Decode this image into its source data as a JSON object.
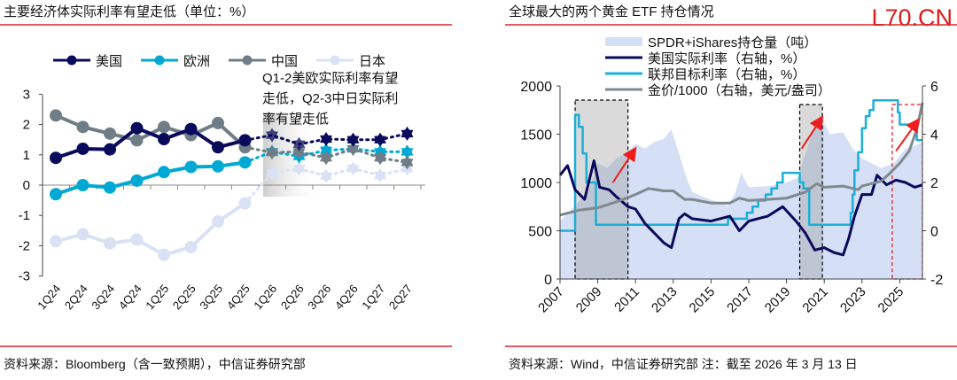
{
  "watermark": "L70.CN",
  "colors": {
    "us": "#0a0a5c",
    "eu": "#00a9d4",
    "cn": "#6f7e86",
    "jp": "#d9e2f5",
    "rule": "#d9282f",
    "etf": "#d5dff5",
    "fed": "#1ab0d8",
    "gold": "#7f8a8e",
    "arrow": "#ee1c1c"
  },
  "chart_data": [
    {
      "type": "line",
      "title": "主要经济体实际利率有望走低（单位：%）",
      "categories": [
        "1Q24",
        "2Q24",
        "3Q24",
        "4Q24",
        "1Q25",
        "2Q25",
        "3Q25",
        "4Q25",
        "1Q26",
        "2Q26",
        "3Q26",
        "4Q26",
        "1Q27",
        "2Q27"
      ],
      "forecast_start_index": 8,
      "ylim": [
        -3,
        3
      ],
      "yticks": [
        "3",
        "2",
        "1",
        "0",
        "-1",
        "-2",
        "-3"
      ],
      "series": [
        {
          "name": "美国",
          "key": "us",
          "values": [
            0.9,
            1.2,
            1.18,
            1.88,
            1.52,
            1.85,
            1.25,
            1.48,
            1.65,
            1.35,
            1.52,
            1.5,
            1.5,
            1.7
          ]
        },
        {
          "name": "欧洲",
          "key": "eu",
          "values": [
            -0.3,
            0.0,
            -0.08,
            0.15,
            0.43,
            0.6,
            0.62,
            0.75,
            1.1,
            0.95,
            1.15,
            1.2,
            1.1,
            1.1
          ]
        },
        {
          "name": "中国",
          "key": "cn",
          "values": [
            2.3,
            1.92,
            1.7,
            1.48,
            1.92,
            1.65,
            2.05,
            1.25,
            1.08,
            1.1,
            0.9,
            1.2,
            0.9,
            0.75
          ]
        },
        {
          "name": "日本",
          "key": "jp",
          "values": [
            -1.85,
            -1.62,
            -1.92,
            -1.8,
            -2.3,
            -2.05,
            -1.2,
            -0.6,
            0.4,
            0.55,
            0.3,
            0.55,
            0.32,
            0.55
          ]
        }
      ],
      "annotation": [
        "Q1-2美欧实际利率有望",
        "走低，Q2-3中日实际利",
        "率有望走低"
      ],
      "source": "资料来源：Bloomberg（含一致预期），中信证券研究部"
    },
    {
      "type": "line",
      "title": "全球最大的两个黄金 ETF 持仓情况",
      "xticks": [
        "2007",
        "2009",
        "2011",
        "2013",
        "2015",
        "2017",
        "2019",
        "2021",
        "2023",
        "2025"
      ],
      "ylim_left": [
        0,
        2000
      ],
      "yticks_left": [
        "2000",
        "1500",
        "1000",
        "500",
        "0"
      ],
      "ylim_right": [
        -2,
        6
      ],
      "yticks_right": [
        "6",
        "4",
        "2",
        "0",
        "-2"
      ],
      "series": [
        {
          "name": "SPDR+iShares持仓量（吨）",
          "axis": "left",
          "kind": "area",
          "x": [
            2007,
            2007.5,
            2008,
            2008.5,
            2009,
            2009.5,
            2010,
            2010.5,
            2011,
            2011.5,
            2012,
            2012.5,
            2012.9,
            2013.3,
            2013.7,
            2014,
            2015,
            2015.9,
            2016.3,
            2016.6,
            2017,
            2018,
            2019,
            2019.6,
            2020,
            2020.5,
            2020.8,
            2021.3,
            2022,
            2022.5,
            2023,
            2024,
            2024.7,
            2025.3,
            2025.8,
            2026.2
          ],
          "y": [
            600,
            700,
            800,
            900,
            1200,
            1150,
            1250,
            1300,
            1400,
            1350,
            1420,
            1450,
            1550,
            1300,
            1050,
            900,
            820,
            760,
            900,
            1100,
            950,
            960,
            1000,
            1050,
            1300,
            1600,
            1700,
            1500,
            1520,
            1350,
            1250,
            1150,
            1200,
            1350,
            1380,
            1420
          ]
        },
        {
          "name": "美国实际利率（右轴，%）",
          "axis": "right",
          "kind": "line",
          "x": [
            2007,
            2007.4,
            2007.8,
            2008.3,
            2008.8,
            2009.1,
            2009.6,
            2010,
            2010.6,
            2011,
            2011.5,
            2012,
            2012.5,
            2012.9,
            2013.3,
            2013.6,
            2014,
            2015,
            2016,
            2016.5,
            2017,
            2018,
            2018.8,
            2019.5,
            2020,
            2020.5,
            2021,
            2021.5,
            2022,
            2022.3,
            2022.6,
            2023,
            2023.5,
            2023.8,
            2024.3,
            2024.8,
            2025.3,
            2025.8,
            2026.2
          ],
          "y": [
            2.3,
            2.7,
            1.7,
            1.3,
            2.9,
            1.8,
            1.7,
            1.4,
            1.0,
            0.9,
            0.3,
            -0.1,
            -0.5,
            -0.7,
            0.5,
            0.7,
            0.5,
            0.4,
            0.6,
            0.0,
            0.4,
            0.6,
            1.0,
            0.4,
            -0.1,
            -0.8,
            -0.7,
            -0.9,
            -1.0,
            -0.3,
            0.6,
            1.5,
            1.5,
            2.3,
            1.9,
            2.1,
            2.0,
            1.8,
            1.9
          ]
        },
        {
          "name": "联邦目标利率（右轴，%）",
          "axis": "right",
          "kind": "step",
          "x": [
            2007,
            2007.7,
            2007.8,
            2008.0,
            2008.2,
            2008.4,
            2008.9,
            2015.9,
            2016.9,
            2017.2,
            2017.5,
            2017.9,
            2018.2,
            2018.5,
            2018.8,
            2019.5,
            2019.7,
            2019.9,
            2020.2,
            2022.2,
            2022.4,
            2022.5,
            2022.6,
            2022.8,
            2023.0,
            2023.2,
            2023.4,
            2023.6,
            2024.7,
            2024.9,
            2025.0,
            2025.8,
            2025.9,
            2026.2
          ],
          "y": [
            0,
            0,
            4.8,
            4.3,
            3.2,
            2.0,
            0.25,
            0.5,
            0.75,
            1.0,
            1.25,
            1.5,
            1.75,
            2.0,
            2.4,
            2.4,
            2.0,
            1.75,
            0.25,
            0.25,
            0.75,
            1.5,
            2.5,
            3.25,
            4.25,
            4.75,
            5.0,
            5.4,
            5.4,
            4.9,
            4.4,
            4.4,
            3.75,
            3.75
          ]
        },
        {
          "name": "金价/1000（右轴，美元/盎司）",
          "axis": "right",
          "kind": "line",
          "x": [
            2007,
            2008,
            2009,
            2010,
            2011,
            2011.7,
            2012.5,
            2013,
            2013.6,
            2014,
            2015,
            2016,
            2016.5,
            2017,
            2018,
            2019,
            2019.6,
            2020,
            2020.6,
            2021,
            2022,
            2022.8,
            2023,
            2024,
            2024.5,
            2025,
            2025.5,
            2025.9,
            2026.2
          ],
          "y": [
            0.65,
            0.85,
            0.95,
            1.2,
            1.5,
            1.75,
            1.65,
            1.65,
            1.3,
            1.3,
            1.15,
            1.15,
            1.35,
            1.25,
            1.3,
            1.35,
            1.5,
            1.6,
            1.95,
            1.8,
            1.85,
            1.7,
            1.85,
            2.05,
            2.4,
            2.8,
            3.3,
            4.2,
            5.3
          ]
        }
      ],
      "highlight_periods": [
        [
          2007.8,
          2010.6
        ],
        [
          2019.7,
          2020.9
        ],
        [
          2024.6,
          2026.2
        ]
      ],
      "source": "资料来源：Wind，中信证券研究部 注：截至 2026 年 3 月 13 日"
    }
  ]
}
